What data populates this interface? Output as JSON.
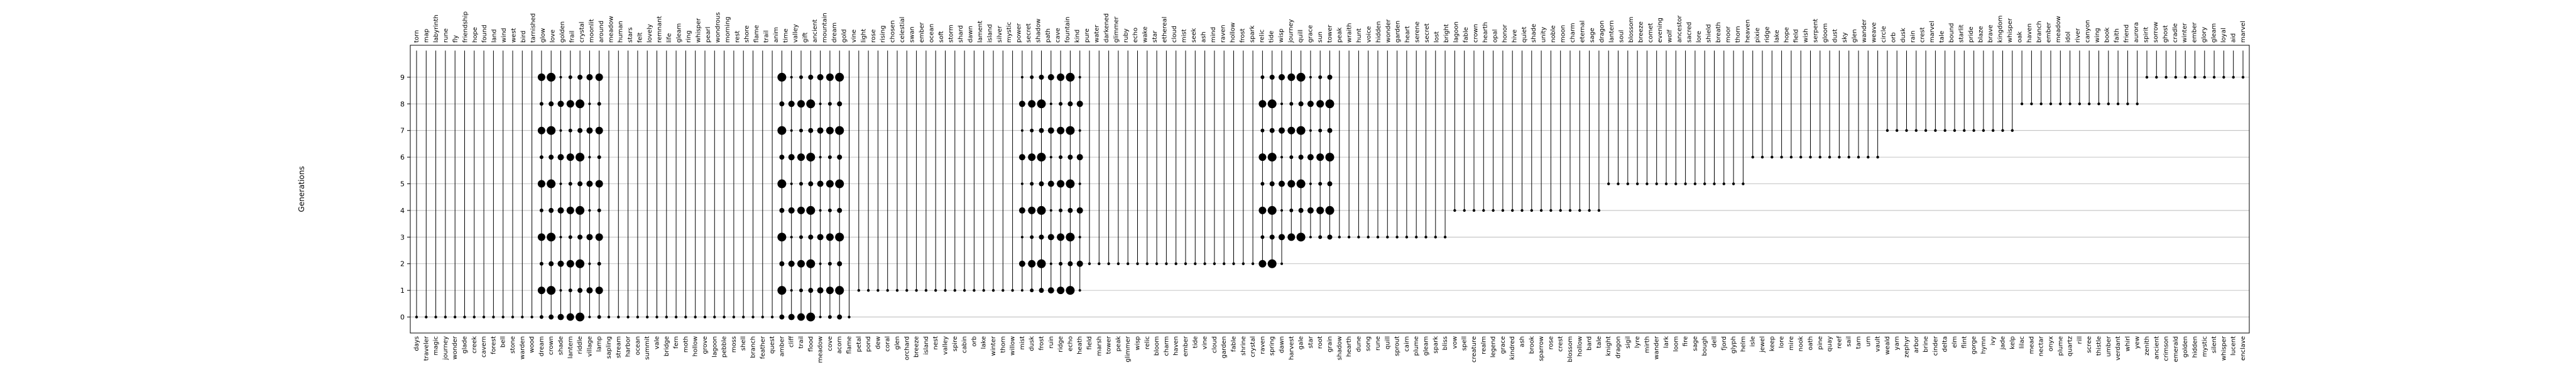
{
  "chart_data": {
    "type": "scatter",
    "title": "",
    "ylabel": "Generations",
    "xlabel": "",
    "yticks": [
      0,
      1,
      2,
      3,
      4,
      5,
      6,
      7,
      8,
      9
    ],
    "ylim": [
      -0.6,
      10.2
    ],
    "grid": true,
    "legend": "none",
    "top_words": [
      "torn",
      "map",
      "labyrinth",
      "rune",
      "fly",
      "friendship",
      "hope",
      "found",
      "land",
      "wind",
      "west",
      "bird",
      "tarnished",
      "glow",
      "love",
      "golden",
      "frail",
      "crystal",
      "moonlit",
      "around",
      "meadow",
      "human",
      "stars",
      "felt",
      "lovely",
      "remnant",
      "life",
      "gleam",
      "ring",
      "whisper",
      "pearl",
      "wondrous",
      "morning",
      "rest",
      "shore",
      "flame",
      "trail",
      "anim",
      "time",
      "valley",
      "gift",
      "ancient",
      "mountain",
      "dream",
      "gold",
      "vine",
      "light",
      "rose",
      "rising",
      "chosen",
      "celestial",
      "swan",
      "ember",
      "ocean",
      "soft",
      "storm",
      "shard",
      "dawn",
      "lament",
      "island",
      "silver",
      "mystic",
      "power",
      "secret",
      "shadow",
      "path",
      "cave",
      "fountain",
      "kind",
      "pure",
      "water",
      "darkened",
      "glimmer",
      "ruby",
      "echo",
      "wake",
      "star",
      "ethereal",
      "cloud",
      "mist",
      "seek",
      "ash",
      "mind",
      "raven",
      "hollow",
      "frost",
      "spark",
      "relic",
      "tide",
      "wisp",
      "journey",
      "quill",
      "grace",
      "sun",
      "tower",
      "peak",
      "wraith",
      "hunt",
      "voice",
      "hidden",
      "wonder",
      "garden",
      "heart",
      "serene",
      "secret",
      "lost",
      "bright",
      "lagoon",
      "fable",
      "crown",
      "hearth",
      "opal",
      "honor",
      "hive",
      "quiet",
      "shade",
      "unity",
      "noble",
      "moon",
      "charm",
      "eternal",
      "sage",
      "dragon",
      "lantern",
      "soul",
      "blossom",
      "breeze",
      "comet",
      "evening",
      "wolf",
      "ancestor",
      "sacred",
      "lore",
      "shield",
      "breath",
      "moor",
      "thorn",
      "heaven",
      "pixie",
      "ridge",
      "lake",
      "hope",
      "field",
      "wish",
      "serpent",
      "gloom",
      "dust",
      "sky",
      "glen",
      "wander",
      "weave",
      "circle",
      "orb",
      "dusk",
      "rain",
      "crest",
      "marvel",
      "tale",
      "bound",
      "starlit",
      "pride",
      "blaze",
      "brave",
      "kingdom",
      "whisper",
      "oak",
      "haven",
      "branch",
      "ember",
      "meadow",
      "idol",
      "river",
      "canyon",
      "wing",
      "book",
      "faith",
      "friend",
      "aurora",
      "spirit",
      "sorrow",
      "ghost",
      "cradle",
      "winter",
      "ember",
      "glory",
      "gleam",
      "loyal",
      "aid",
      "marvel"
    ],
    "bottom_words": [
      "days",
      "traveler",
      "magic",
      "journey",
      "wonder",
      "glade",
      "creek",
      "cavern",
      "forest",
      "bell",
      "stone",
      "warden",
      "wood",
      "dream",
      "crown",
      "shade",
      "lantern",
      "riddle",
      "village",
      "lamp",
      "sapling",
      "stream",
      "harbor",
      "ocean",
      "summit",
      "vale",
      "bridge",
      "fern",
      "moth",
      "hollow",
      "grove",
      "lagoon",
      "pebble",
      "moss",
      "shell",
      "branch",
      "feather",
      "quest",
      "amber",
      "cliff",
      "trail",
      "flood",
      "meadow",
      "cove",
      "acorn",
      "flame",
      "petal",
      "pond",
      "dew",
      "coral",
      "glen",
      "orchard",
      "breeze",
      "island",
      "nest",
      "valley",
      "spire",
      "cabin",
      "orb",
      "lake",
      "winter",
      "thorn",
      "willow",
      "mist",
      "dusk",
      "frost",
      "ruin",
      "ridge",
      "echo",
      "heath",
      "field",
      "marsh",
      "tower",
      "peak",
      "glimmer",
      "wisp",
      "relic",
      "bloom",
      "charm",
      "haven",
      "ember",
      "tide",
      "vine",
      "cloud",
      "garden",
      "fable",
      "shrine",
      "crystal",
      "raven",
      "spring",
      "dawn",
      "harvest",
      "gale",
      "star",
      "root",
      "grain",
      "shadow",
      "hearth",
      "dune",
      "song",
      "rune",
      "quill",
      "sprout",
      "cairn",
      "plume",
      "gleam",
      "spark",
      "bliss",
      "vow",
      "spell",
      "creature",
      "realm",
      "legend",
      "grace",
      "kindred",
      "ash",
      "brook",
      "sparrow",
      "rose",
      "crest",
      "blossom",
      "hollow",
      "bard",
      "tale",
      "knight",
      "dragon",
      "sigil",
      "lyre",
      "mirth",
      "wander",
      "lark",
      "loom",
      "fire",
      "sage",
      "bough",
      "dell",
      "fjord",
      "glyph",
      "helm",
      "isle",
      "jewel",
      "keep",
      "lore",
      "mire",
      "nook",
      "oath",
      "pine",
      "quay",
      "reef",
      "sail",
      "tarn",
      "urn",
      "vault",
      "weald",
      "yarn",
      "zephyr",
      "arbor",
      "brine",
      "cinder",
      "delta",
      "elm",
      "flint",
      "gorge",
      "hymn",
      "ivy",
      "jade",
      "kelp",
      "lilac",
      "mead",
      "nectar",
      "onyx",
      "plume",
      "quartz",
      "rill",
      "scree",
      "thistle",
      "umber",
      "verdant",
      "whirl",
      "yew",
      "zenith",
      "ancient",
      "crimson",
      "emerald",
      "golden",
      "hidden",
      "mystic",
      "silent",
      "whisper",
      "lucent",
      "enclave"
    ],
    "series": [
      {
        "name": "",
        "points": [
          [
            0,
            0,
            1
          ],
          [
            0,
            1,
            1
          ],
          [
            0,
            2,
            1
          ],
          [
            0,
            3,
            1
          ],
          [
            0,
            4,
            1
          ],
          [
            0,
            5,
            1
          ],
          [
            0,
            6,
            1
          ],
          [
            0,
            7,
            1
          ],
          [
            0,
            8,
            1
          ],
          [
            0,
            9,
            1
          ]
        ]
      }
    ]
  }
}
